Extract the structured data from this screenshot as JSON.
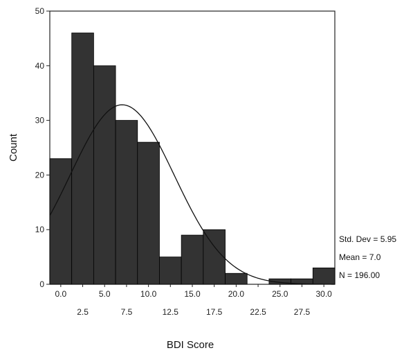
{
  "chart_data": {
    "type": "bar",
    "subtype": "histogram",
    "title": "",
    "xlabel": "BDI Score",
    "ylabel": "Count",
    "bin_width": 2.5,
    "x": [
      0.0,
      2.5,
      5.0,
      7.5,
      10.0,
      12.5,
      15.0,
      17.5,
      20.0,
      22.5,
      25.0,
      27.5,
      30.0
    ],
    "values": [
      23,
      46,
      40,
      30,
      26,
      5,
      9,
      10,
      2,
      0,
      1,
      1,
      3
    ],
    "xticks_upper": [
      "0.0",
      "5.0",
      "10.0",
      "15.0",
      "20.0",
      "25.0",
      "30.0"
    ],
    "xticks_lower": [
      "2.5",
      "7.5",
      "12.5",
      "17.5",
      "22.5",
      "27.5"
    ],
    "yticks": [
      "0",
      "10",
      "20",
      "30",
      "40",
      "50"
    ],
    "ylim": [
      0,
      50
    ],
    "xlim": [
      -1.25,
      31.25
    ],
    "bar_color": "#333333",
    "normal_curve": {
      "mean": 7.0,
      "sd": 5.95,
      "n": 196,
      "color": "#111111"
    },
    "stats": {
      "std_dev": "Std. Dev = 5.95",
      "mean": "Mean = 7.0",
      "n": "N = 196.00"
    }
  }
}
